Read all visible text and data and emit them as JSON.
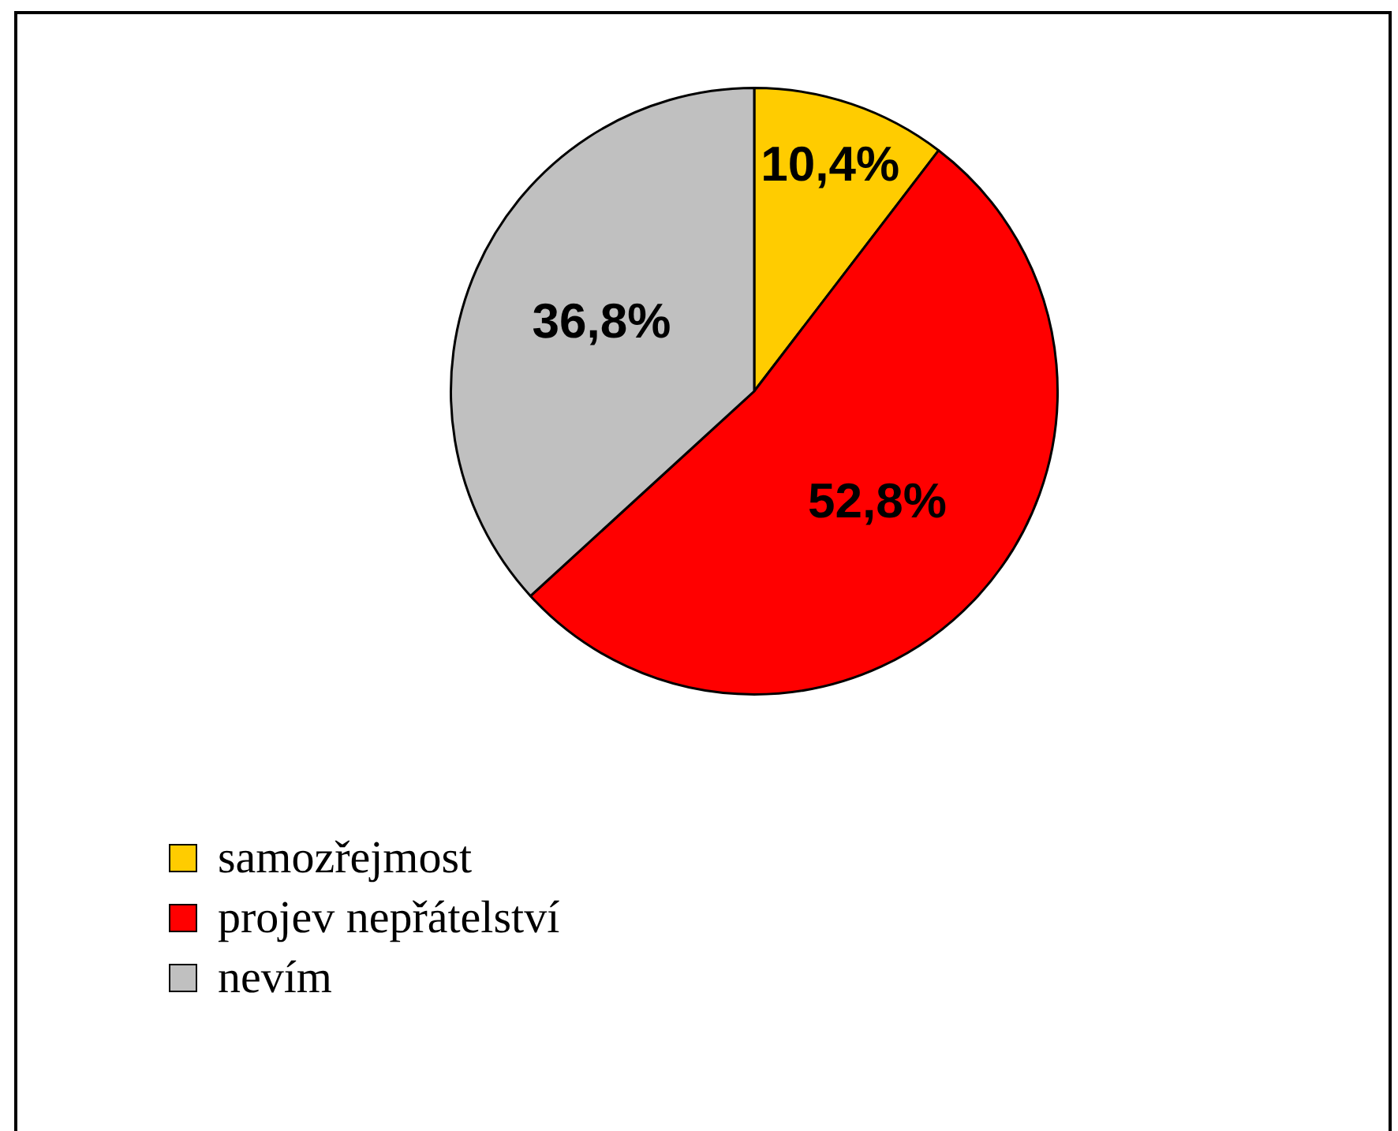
{
  "chart_data": {
    "type": "pie",
    "categories": [
      "samozřejmost",
      "projev nepřátelství",
      "nevím"
    ],
    "values": [
      10.4,
      52.8,
      36.8
    ],
    "colors": [
      "#ffcc00",
      "#ff0000",
      "#c0c0c0"
    ],
    "value_labels": [
      "10,4%",
      "52,8%",
      "36,8%"
    ],
    "legend": "bottom left"
  }
}
